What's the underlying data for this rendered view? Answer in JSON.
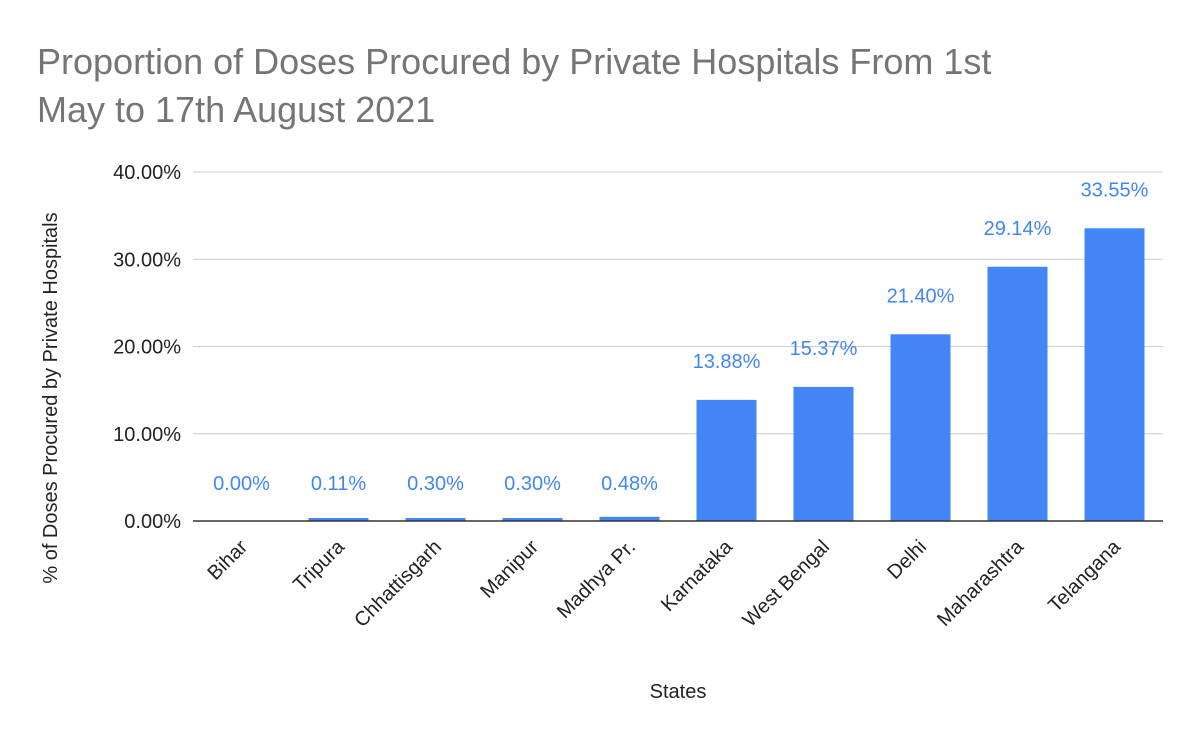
{
  "chart_data": {
    "type": "bar",
    "title_lines": [
      "Proportion of Doses Procured by Private Hospitals From 1st",
      "May to 17th August 2021"
    ],
    "xlabel": "States",
    "ylabel": "% of Doses Procured by Private Hospitals",
    "categories": [
      "Bihar",
      "Tripura",
      "Chhattisgarh",
      "Manipur",
      "Madhya Pr.",
      "Karnataka",
      "West Bengal",
      "Delhi",
      "Maharashtra",
      "Telangana"
    ],
    "values": [
      0.0,
      0.11,
      0.3,
      0.3,
      0.48,
      13.88,
      15.37,
      21.4,
      29.14,
      33.55
    ],
    "value_labels": [
      "0.00%",
      "0.11%",
      "0.30%",
      "0.30%",
      "0.48%",
      "13.88%",
      "15.37%",
      "21.40%",
      "29.14%",
      "33.55%"
    ],
    "y_ticks": [
      0,
      10,
      20,
      30,
      40
    ],
    "y_tick_labels": [
      "0.00%",
      "10.00%",
      "20.00%",
      "30.00%",
      "40.00%"
    ],
    "ylim": [
      0,
      40
    ],
    "grid": true,
    "legend": "none",
    "colors": {
      "bar": "#4285f4",
      "data_label": "#4285f4",
      "title": "#757575",
      "text": "#222222",
      "grid": "#cccccc",
      "baseline": "#333333"
    }
  }
}
